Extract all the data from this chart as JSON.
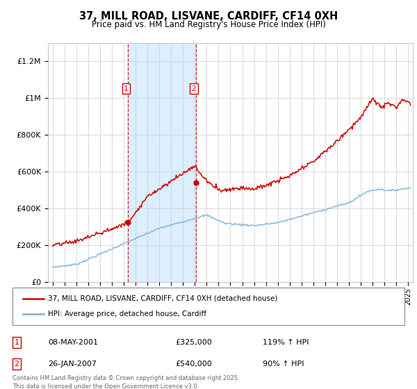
{
  "title": "37, MILL ROAD, LISVANE, CARDIFF, CF14 0XH",
  "subtitle": "Price paid vs. HM Land Registry's House Price Index (HPI)",
  "ylabel_ticks": [
    "£0",
    "£200K",
    "£400K",
    "£600K",
    "£800K",
    "£1M",
    "£1.2M"
  ],
  "ytick_vals": [
    0,
    200000,
    400000,
    600000,
    800000,
    1000000,
    1200000
  ],
  "ylim": [
    0,
    1300000
  ],
  "red_color": "#cc0000",
  "blue_color": "#7ab0d4",
  "shading_color": "#dceeff",
  "legend_red": "37, MILL ROAD, LISVANE, CARDIFF, CF14 0XH (detached house)",
  "legend_blue": "HPI: Average price, detached house, Cardiff",
  "annotation1_date": "08-MAY-2001",
  "annotation1_price": "£325,000",
  "annotation1_hpi": "119% ↑ HPI",
  "annotation2_date": "26-JAN-2007",
  "annotation2_price": "£540,000",
  "annotation2_hpi": "90% ↑ HPI",
  "footer": "Contains HM Land Registry data © Crown copyright and database right 2025.\nThis data is licensed under the Open Government Licence v3.0.",
  "marker1_x": 2001.35,
  "marker1_y": 325000,
  "marker2_x": 2007.07,
  "marker2_y": 540000,
  "shade_x1": 2001.35,
  "shade_x2": 2007.07,
  "xlim_left": 1994.6,
  "xlim_right": 2025.4
}
